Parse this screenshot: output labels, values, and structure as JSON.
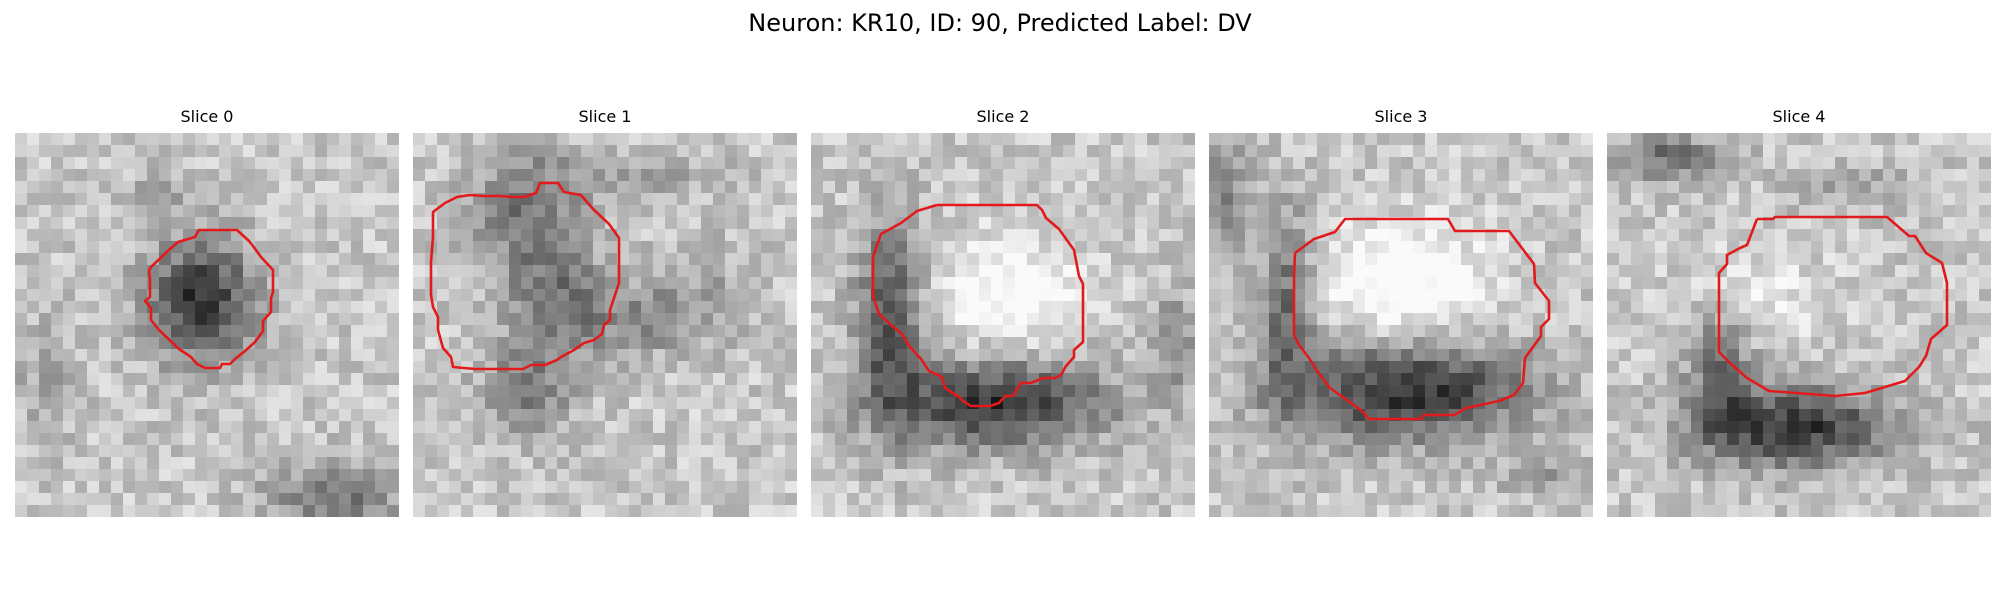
{
  "figure": {
    "title": "Neuron: KR10, ID: 90, Predicted Label: DV"
  },
  "panels": [
    {
      "title": "Slice 0"
    },
    {
      "title": "Slice 1"
    },
    {
      "title": "Slice 2"
    },
    {
      "title": "Slice 3"
    },
    {
      "title": "Slice 4"
    }
  ],
  "colors": {
    "contour": "#e31a1c",
    "background": "#ffffff"
  }
}
